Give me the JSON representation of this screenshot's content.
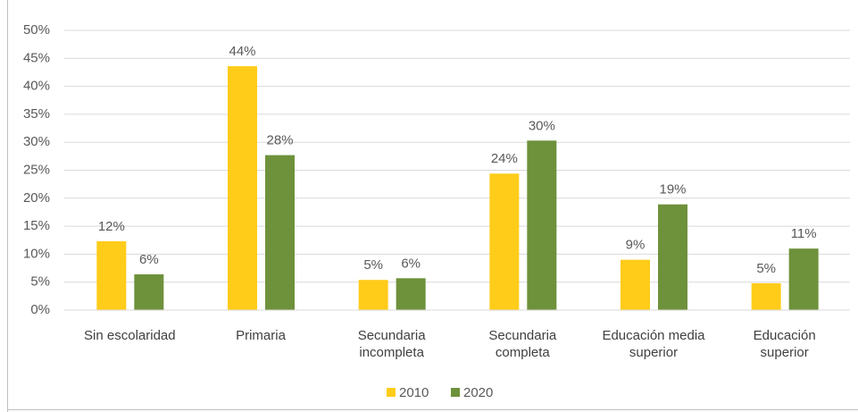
{
  "chart_data": {
    "type": "bar",
    "categories": [
      "Sin escolaridad",
      "Primaria",
      "Secundaria incompleta",
      "Secundaria completa",
      "Educación media superior",
      "Educación superior"
    ],
    "series": [
      {
        "name": "2010",
        "color": "#ffcc1a",
        "values": [
          12.3,
          43.6,
          5.4,
          24.4,
          9,
          4.8
        ],
        "value_labels": [
          "12%",
          "44%",
          "5%",
          "24%",
          "9%",
          "5%"
        ]
      },
      {
        "name": "2020",
        "color": "#6e913b",
        "values": [
          6.4,
          27.7,
          5.7,
          30.3,
          18.9,
          11.0
        ],
        "value_labels": [
          "6%",
          "28%",
          "6%",
          "30%",
          "19%",
          "11%"
        ]
      }
    ],
    "ylim": [
      0,
      50
    ],
    "yticks": [
      {
        "value": 0,
        "label": "0%"
      },
      {
        "value": 5,
        "label": "5%"
      },
      {
        "value": 10,
        "label": "10%"
      },
      {
        "value": 15,
        "label": "15%"
      },
      {
        "value": 20,
        "label": "20%"
      },
      {
        "value": 25,
        "label": "25%"
      },
      {
        "value": 30,
        "label": "30%"
      },
      {
        "value": 35,
        "label": "35%"
      },
      {
        "value": 40,
        "label": "40%"
      },
      {
        "value": 45,
        "label": "45%"
      },
      {
        "value": 50,
        "label": "50%"
      }
    ],
    "grid": true,
    "legend": "bottom"
  }
}
